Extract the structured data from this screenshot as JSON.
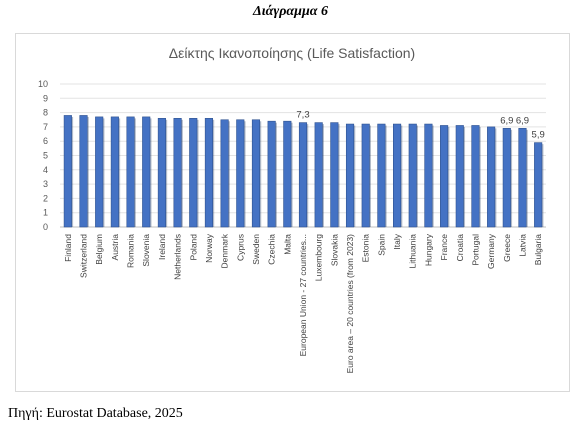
{
  "page": {
    "heading": "Διάγραμμα 6",
    "source": "Πηγή: Eurostat Database, 2025"
  },
  "chart_data": {
    "type": "bar",
    "title": "Δείκτης Ικανοποίησης (Life Satisfaction)",
    "xlabel": "",
    "ylabel": "",
    "ylim": [
      0,
      10
    ],
    "yticks": [
      0,
      1,
      2,
      3,
      4,
      5,
      6,
      7,
      8,
      9,
      10
    ],
    "grid": true,
    "legend": "none",
    "bar_color": "#4472c4",
    "categories": [
      "Finland",
      "Switzerland",
      "Belgium",
      "Austria",
      "Romania",
      "Slovenia",
      "Ireland",
      "Netherlands",
      "Poland",
      "Norway",
      "Denmark",
      "Cyprus",
      "Sweden",
      "Czechia",
      "Malta",
      "European Union - 27 countries...",
      "Luxembourg",
      "Slovakia",
      "Euro area – 20 countries (from 2023)",
      "Estonia",
      "Spain",
      "Italy",
      "Lithuania",
      "Hungary",
      "France",
      "Croatia",
      "Portugal",
      "Germany",
      "Greece",
      "Latvia",
      "Bulgaria"
    ],
    "values": [
      7.8,
      7.8,
      7.7,
      7.7,
      7.7,
      7.7,
      7.6,
      7.6,
      7.6,
      7.6,
      7.5,
      7.5,
      7.5,
      7.4,
      7.4,
      7.3,
      7.3,
      7.3,
      7.2,
      7.2,
      7.2,
      7.2,
      7.2,
      7.2,
      7.1,
      7.1,
      7.1,
      7.0,
      6.9,
      6.9,
      5.9
    ],
    "data_labels": [
      {
        "category": "European Union - 27 countries...",
        "text": "7,3"
      },
      {
        "category": "Greece",
        "text": "6,9"
      },
      {
        "category": "Latvia",
        "text": "6,9"
      },
      {
        "category": "Bulgaria",
        "text": "5,9"
      }
    ]
  }
}
